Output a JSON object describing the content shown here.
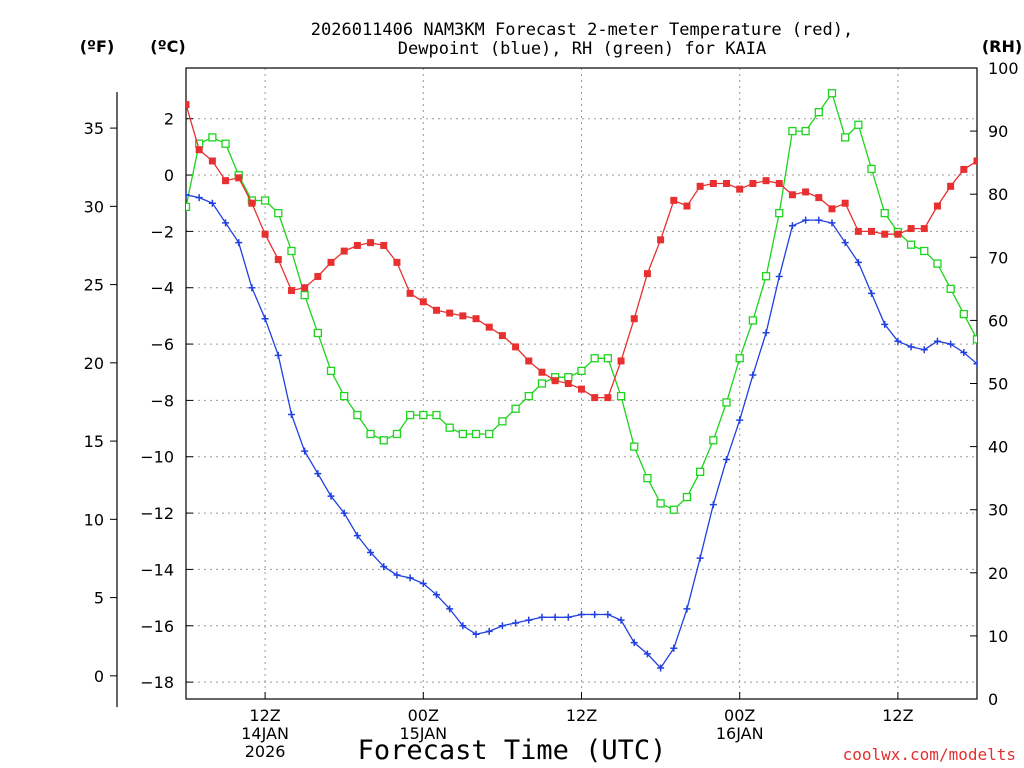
{
  "chart_data": {
    "type": "line",
    "title_line1": "2026011406 NAM3KM Forecast 2-meter Temperature (red),",
    "title_line2": "Dewpoint (blue), RH (green) for KAIA",
    "xlabel": "Forecast Time (UTC)",
    "credit": "coolwx.com/modelts",
    "units": {
      "fahrenheit": "(ºF)",
      "celsius": "(ºC)",
      "rh": "(RH)"
    },
    "x_unit": "forecast hour (hours after 2026-01-14 06Z)",
    "x_range": [
      0,
      60
    ],
    "celsius_range": [
      -18.6,
      3.8
    ],
    "rh_range": [
      0,
      100
    ],
    "celsius_ticks": [
      2,
      0,
      -2,
      -4,
      -6,
      -8,
      -10,
      -12,
      -14,
      -16,
      -18
    ],
    "fahrenheit_ticks": [
      35,
      30,
      25,
      20,
      15,
      10,
      5,
      0
    ],
    "rh_ticks": [
      100,
      90,
      80,
      70,
      60,
      50,
      40,
      30,
      20,
      10,
      0
    ],
    "x_ticks": [
      {
        "hour": 6,
        "line1": "12Z",
        "line2": "14JAN",
        "line3": "2026"
      },
      {
        "hour": 18,
        "line1": "00Z",
        "line2": "15JAN",
        "line3": ""
      },
      {
        "hour": 30,
        "line1": "12Z",
        "line2": "",
        "line3": ""
      },
      {
        "hour": 42,
        "line1": "00Z",
        "line2": "16JAN",
        "line3": ""
      },
      {
        "hour": 54,
        "line1": "12Z",
        "line2": "",
        "line3": ""
      }
    ],
    "series": [
      {
        "name": "Temperature",
        "axis": "celsius",
        "color": "#e83030",
        "marker": "filled-square",
        "values": [
          2.5,
          0.9,
          0.5,
          -0.2,
          -0.1,
          -1.0,
          -2.1,
          -3.0,
          -4.1,
          -4.0,
          -3.6,
          -3.1,
          -2.7,
          -2.5,
          -2.4,
          -2.5,
          -3.1,
          -4.2,
          -4.5,
          -4.8,
          -4.9,
          -5.0,
          -5.1,
          -5.4,
          -5.7,
          -6.1,
          -6.6,
          -7.0,
          -7.3,
          -7.4,
          -7.6,
          -7.9,
          -7.9,
          -6.6,
          -5.1,
          -3.5,
          -2.3,
          -0.9,
          -1.1,
          -0.4,
          -0.3,
          -0.3,
          -0.5,
          -0.3,
          -0.2,
          -0.3,
          -0.7,
          -0.6,
          -0.8,
          -1.2,
          -1.0,
          -2.0,
          -2.0,
          -2.1,
          -2.1,
          -1.9,
          -1.9,
          -1.1,
          -0.4,
          0.2,
          0.5
        ]
      },
      {
        "name": "Dewpoint",
        "axis": "celsius",
        "color": "#2040e0",
        "marker": "plus",
        "values": [
          -0.7,
          -0.8,
          -1.0,
          -1.7,
          -2.4,
          -4.0,
          -5.1,
          -6.4,
          -8.5,
          -9.8,
          -10.6,
          -11.4,
          -12.0,
          -12.8,
          -13.4,
          -13.9,
          -14.2,
          -14.3,
          -14.5,
          -14.9,
          -15.4,
          -16.0,
          -16.3,
          -16.2,
          -16.0,
          -15.9,
          -15.8,
          -15.7,
          -15.7,
          -15.7,
          -15.6,
          -15.6,
          -15.6,
          -15.8,
          -16.6,
          -17.0,
          -17.5,
          -16.8,
          -15.4,
          -13.6,
          -11.7,
          -10.1,
          -8.7,
          -7.1,
          -5.6,
          -3.6,
          -1.8,
          -1.6,
          -1.6,
          -1.7,
          -2.4,
          -3.1,
          -4.2,
          -5.3,
          -5.9,
          -6.1,
          -6.2,
          -5.9,
          -6.0,
          -6.3,
          -6.7
        ]
      },
      {
        "name": "RH",
        "axis": "rh",
        "color": "#1ed41e",
        "marker": "open-square",
        "values": [
          78,
          88,
          89,
          88,
          83,
          79,
          79,
          77,
          71,
          64,
          58,
          52,
          48,
          45,
          42,
          41,
          42,
          45,
          45,
          45,
          43,
          42,
          42,
          42,
          44,
          46,
          48,
          50,
          51,
          51,
          52,
          54,
          54,
          48,
          40,
          35,
          31,
          30,
          32,
          36,
          41,
          47,
          54,
          60,
          67,
          77,
          90,
          90,
          93,
          96,
          89,
          91,
          84,
          77,
          74,
          72,
          71,
          69,
          65,
          61,
          57
        ]
      }
    ]
  }
}
